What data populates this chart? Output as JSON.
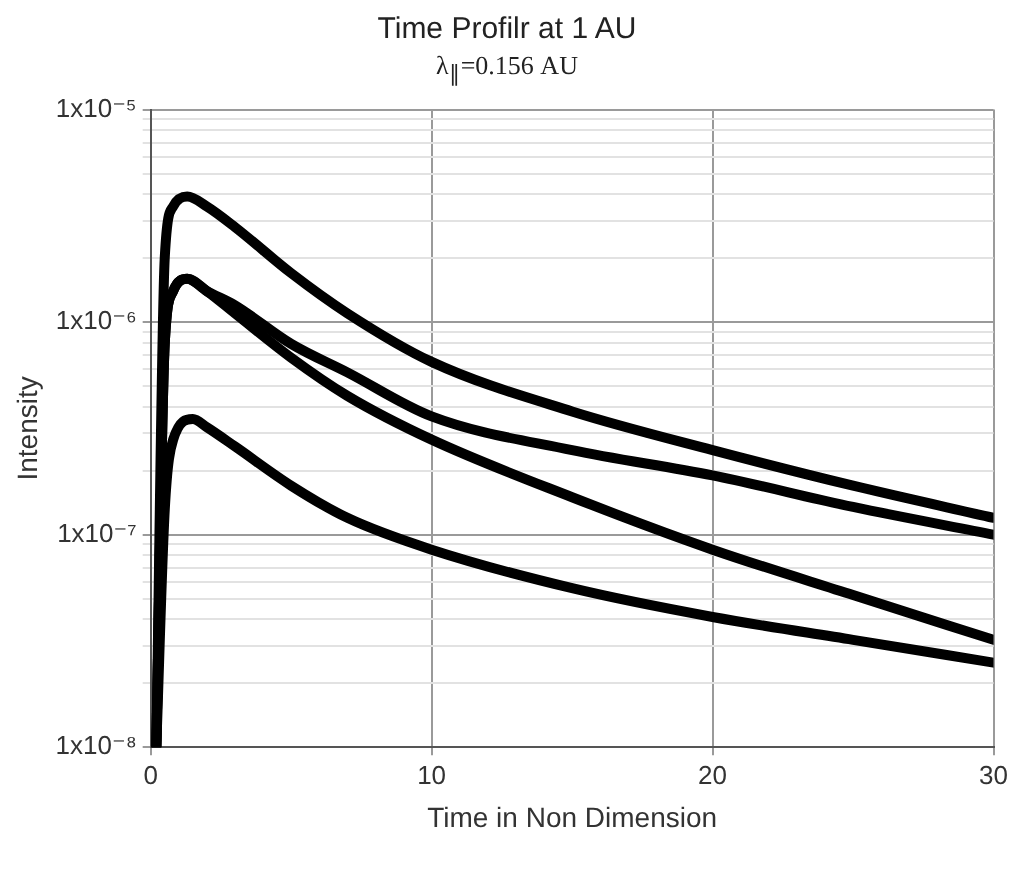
{
  "chart_data": {
    "type": "line",
    "title": "Time Profilr at 1 AU",
    "subtitle": "λ$_{∥}$=0.156 AU",
    "xlabel": "Time in Non Dimension",
    "ylabel": "Intensity",
    "log": "y",
    "grid": true,
    "legend": false,
    "marker": "none",
    "line_style": "solid",
    "xlim": [
      0,
      30
    ],
    "xticks": [
      0,
      10,
      20,
      30
    ],
    "ylim": [
      1e-08,
      1e-05
    ],
    "yticks": [
      {
        "value": 1e-08,
        "label": "1x10⁻⁸"
      },
      {
        "value": 2e-08,
        "label": null
      },
      {
        "value": 3e-08,
        "label": null
      },
      {
        "value": 4e-08,
        "label": null
      },
      {
        "value": 5e-08,
        "label": null
      },
      {
        "value": 6e-08,
        "label": null
      },
      {
        "value": 7e-08,
        "label": null
      },
      {
        "value": 8e-08,
        "label": null
      },
      {
        "value": 9e-08,
        "label": null
      },
      {
        "value": 1e-07,
        "label": "1x10⁻⁷"
      },
      {
        "value": 2e-07,
        "label": null
      },
      {
        "value": 3e-07,
        "label": null
      },
      {
        "value": 4e-07,
        "label": null
      },
      {
        "value": 5e-07,
        "label": null
      },
      {
        "value": 6e-07,
        "label": null
      },
      {
        "value": 7e-07,
        "label": null
      },
      {
        "value": 8e-07,
        "label": null
      },
      {
        "value": 9e-07,
        "label": null
      },
      {
        "value": 1e-06,
        "label": "1x10⁻⁶"
      },
      {
        "value": 2e-06,
        "label": null
      },
      {
        "value": 3e-06,
        "label": null
      },
      {
        "value": 4e-06,
        "label": null
      },
      {
        "value": 5e-06,
        "label": null
      },
      {
        "value": 6e-06,
        "label": null
      },
      {
        "value": 7e-06,
        "label": null
      },
      {
        "value": 8e-06,
        "label": null
      },
      {
        "value": 9e-06,
        "label": null
      },
      {
        "value": 1e-05,
        "label": "1x10⁻⁵"
      }
    ],
    "series": [
      {
        "color": "#000000",
        "x": [
          0.2,
          0.5,
          0.8,
          1.3,
          2,
          3,
          5,
          7,
          10,
          15,
          20,
          25,
          30
        ],
        "values": [
          1e-08,
          2e-06,
          3.5e-06,
          3.9e-06,
          3.5e-06,
          2.8e-06,
          1.7e-06,
          1.1e-06,
          6.5e-07,
          3.8e-07,
          2.5e-07,
          1.7e-07,
          1.2e-07
        ]
      },
      {
        "color": "#000000",
        "x": [
          0.2,
          0.5,
          0.8,
          1.3,
          2,
          3,
          5,
          7,
          10,
          15,
          20,
          25,
          30
        ],
        "values": [
          1e-08,
          7.9e-07,
          1.4e-06,
          1.6e-06,
          1.4e-06,
          1.2e-06,
          7.9e-07,
          5.8e-07,
          3.6e-07,
          2.5e-07,
          1.9e-07,
          1.35e-07,
          1e-07
        ]
      },
      {
        "color": "#000000",
        "x": [
          0.2,
          0.5,
          0.8,
          1.3,
          2,
          3,
          5,
          7,
          10,
          15,
          20,
          25,
          30
        ],
        "values": [
          1e-08,
          7.9e-07,
          1.4e-06,
          1.6e-06,
          1.4e-06,
          1.1e-06,
          6.8e-07,
          4.5e-07,
          2.8e-07,
          1.5e-07,
          8.5e-08,
          5.2e-08,
          3.2e-08
        ]
      },
      {
        "color": "#000000",
        "x": [
          0.2,
          0.5,
          0.8,
          1.5,
          2,
          3,
          5,
          7,
          10,
          15,
          20,
          25,
          30
        ],
        "values": [
          1e-08,
          1.3e-07,
          2.8e-07,
          3.5e-07,
          3.2e-07,
          2.6e-07,
          1.7e-07,
          1.2e-07,
          8.5e-08,
          5.6e-08,
          4.1e-08,
          3.2e-08,
          2.5e-08
        ]
      }
    ]
  }
}
